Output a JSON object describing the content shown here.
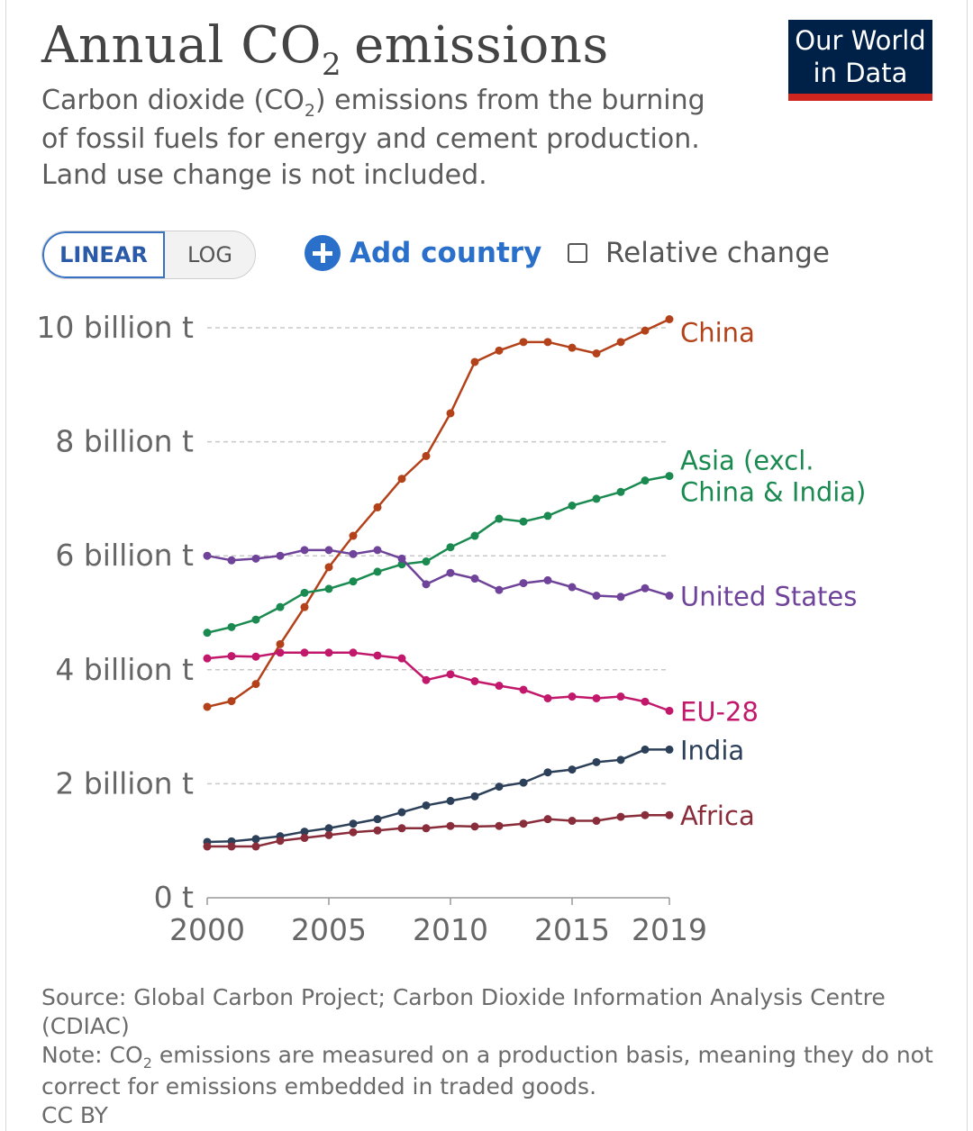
{
  "header": {
    "title_main": "Annual CO",
    "title_sub": "2",
    "title_end": "emissions",
    "subtitle_a": "Carbon dioxide (CO",
    "subtitle_sub": "2",
    "subtitle_b": ") emissions from the burning of fossil fuels for energy and cement production. Land use change is not included."
  },
  "logo": {
    "line1": "Our World",
    "line2": "in Data",
    "bg_color": "#002147",
    "bar_color": "#ce261e"
  },
  "controls": {
    "linear_label": "LINEAR",
    "log_label": "LOG",
    "add_country_label": "Add country",
    "relative_change_label": "Relative change",
    "add_icon": "plus-circle-icon",
    "checkbox_icon": "checkbox-icon"
  },
  "footer": {
    "source": "Source: Global Carbon Project; Carbon Dioxide Information Analysis Centre (CDIAC)",
    "note_a": "Note: CO",
    "note_sub": "2",
    "note_b": " emissions are measured on a production basis, meaning they do not correct for emissions embedded in traded goods.",
    "license": "CC BY"
  },
  "chart_data": {
    "type": "line",
    "x": [
      2000,
      2001,
      2002,
      2003,
      2004,
      2005,
      2006,
      2007,
      2008,
      2009,
      2010,
      2011,
      2012,
      2013,
      2014,
      2015,
      2016,
      2017,
      2018,
      2019
    ],
    "x_ticks": [
      "2000",
      "2005",
      "2010",
      "2015",
      "2019"
    ],
    "y_ticks": [
      "0 t",
      "2 billion t",
      "4 billion t",
      "6 billion t",
      "8 billion t",
      "10 billion t"
    ],
    "ylim": [
      0,
      10000000000
    ],
    "xlim": [
      2000,
      2019
    ],
    "grid": "horizontal dashed",
    "legend": "inline labels at line ends",
    "series": [
      {
        "name": "China",
        "color": "#b3421a",
        "values": [
          3350000000.0,
          3450000000.0,
          3750000000.0,
          4450000000.0,
          5100000000.0,
          5800000000.0,
          6350000000.0,
          6850000000.0,
          7350000000.0,
          7750000000.0,
          8500000000.0,
          9400000000.0,
          9600000000.0,
          9750000000.0,
          9750000000.0,
          9650000000.0,
          9550000000.0,
          9750000000.0,
          9950000000.0,
          10150000000.0
        ]
      },
      {
        "name": "Asia (excl. China & India)",
        "color": "#1a8a50",
        "values": [
          4650000000.0,
          4750000000.0,
          4880000000.0,
          5100000000.0,
          5350000000.0,
          5420000000.0,
          5550000000.0,
          5720000000.0,
          5850000000.0,
          5900000000.0,
          6150000000.0,
          6350000000.0,
          6650000000.0,
          6600000000.0,
          6700000000.0,
          6880000000.0,
          7000000000.0,
          7120000000.0,
          7320000000.0,
          7400000000.0
        ]
      },
      {
        "name": "United States",
        "color": "#6e4399",
        "values": [
          6000000000.0,
          5920000000.0,
          5950000000.0,
          6000000000.0,
          6100000000.0,
          6100000000.0,
          6030000000.0,
          6100000000.0,
          5950000000.0,
          5500000000.0,
          5700000000.0,
          5600000000.0,
          5400000000.0,
          5520000000.0,
          5570000000.0,
          5450000000.0,
          5300000000.0,
          5280000000.0,
          5430000000.0,
          5300000000.0
        ]
      },
      {
        "name": "EU-28",
        "color": "#c2186b",
        "values": [
          4200000000.0,
          4240000000.0,
          4230000000.0,
          4300000000.0,
          4300000000.0,
          4300000000.0,
          4300000000.0,
          4250000000.0,
          4200000000.0,
          3820000000.0,
          3920000000.0,
          3800000000.0,
          3720000000.0,
          3650000000.0,
          3500000000.0,
          3530000000.0,
          3500000000.0,
          3530000000.0,
          3440000000.0,
          3280000000.0
        ]
      },
      {
        "name": "India",
        "color": "#2d4059",
        "values": [
          980000000.0,
          990000000.0,
          1030000000.0,
          1080000000.0,
          1160000000.0,
          1220000000.0,
          1300000000.0,
          1380000000.0,
          1500000000.0,
          1620000000.0,
          1700000000.0,
          1780000000.0,
          1950000000.0,
          2020000000.0,
          2200000000.0,
          2250000000.0,
          2380000000.0,
          2420000000.0,
          2600000000.0,
          2600000000.0
        ]
      },
      {
        "name": "Africa",
        "color": "#8a2d3a",
        "values": [
          900000000.0,
          900000000.0,
          900000000.0,
          1000000000.0,
          1050000000.0,
          1100000000.0,
          1150000000.0,
          1180000000.0,
          1220000000.0,
          1220000000.0,
          1260000000.0,
          1250000000.0,
          1260000000.0,
          1300000000.0,
          1380000000.0,
          1350000000.0,
          1350000000.0,
          1420000000.0,
          1450000000.0,
          1450000000.0
        ]
      }
    ],
    "end_labels": [
      {
        "series": "China",
        "lines": [
          "China"
        ]
      },
      {
        "series": "Asia (excl. China & India)",
        "lines": [
          "Asia (excl.",
          "China & India)"
        ]
      },
      {
        "series": "United States",
        "lines": [
          "United States"
        ]
      },
      {
        "series": "EU-28",
        "lines": [
          "EU-28"
        ]
      },
      {
        "series": "India",
        "lines": [
          "India"
        ]
      },
      {
        "series": "Africa",
        "lines": [
          "Africa"
        ]
      }
    ]
  }
}
